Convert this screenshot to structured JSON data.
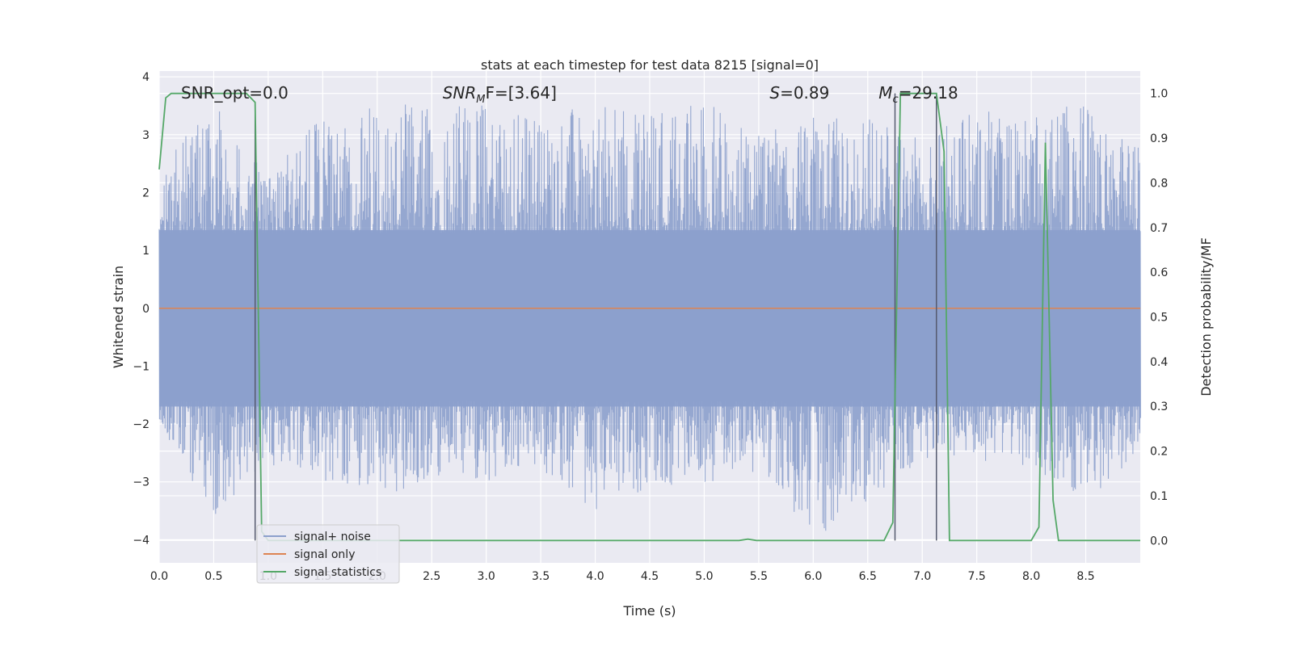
{
  "chart_data": {
    "type": "line",
    "title": "stats at each timestep for test data 8215 [signal=0]",
    "xlabel": "Time (s)",
    "ylabel": "Whitened strain",
    "y2label": "Detection probability/MF",
    "xlim": [
      0,
      9
    ],
    "ylim": [
      -4.4,
      4.1
    ],
    "y2lim": [
      -0.05,
      1.05
    ],
    "xticks": [
      "0.0",
      "0.5",
      "1.0",
      "1.5",
      "2.0",
      "2.5",
      "3.0",
      "3.5",
      "4.0",
      "4.5",
      "5.0",
      "5.5",
      "6.0",
      "6.5",
      "7.0",
      "7.5",
      "8.0",
      "8.5"
    ],
    "yticks": [
      "4",
      "3",
      "2",
      "1",
      "0",
      "−1",
      "−2",
      "−3",
      "−4"
    ],
    "y2ticks": [
      "1.0",
      "0.9",
      "0.8",
      "0.7",
      "0.6",
      "0.5",
      "0.4",
      "0.3",
      "0.2",
      "0.1",
      "0.0"
    ],
    "grid": true,
    "legend_position": "lower-left",
    "annotations": [
      {
        "text": "SNR_opt=0.0",
        "x": 0.2
      },
      {
        "text_main": "SNR",
        "text_sub": "M",
        "text_tail": "F=[3.64]",
        "x": 2.6
      },
      {
        "text_main": "S",
        "text_tail": "=0.89",
        "x": 5.6
      },
      {
        "text_main": "M",
        "text_sub": "c",
        "text_tail": "=29.18",
        "x": 6.6
      }
    ],
    "series": [
      {
        "name": "signal+ noise",
        "color": "#8ca0cc",
        "axis": "left",
        "envelope_x": [
          0,
          0.5,
          1.0,
          1.5,
          2.0,
          2.5,
          3.0,
          3.5,
          4.0,
          4.5,
          5.0,
          5.5,
          6.0,
          6.5,
          7.0,
          7.5,
          8.0,
          8.5,
          9.0
        ],
        "envelope_high": [
          2.4,
          3.6,
          2.3,
          3.4,
          3.5,
          3.6,
          3.6,
          3.4,
          3.5,
          3.5,
          3.6,
          3.0,
          3.3,
          3.3,
          2.9,
          3.5,
          3.3,
          3.6,
          2.8
        ],
        "envelope_low": [
          -2.1,
          -3.6,
          -2.7,
          -3.0,
          -3.2,
          -3.1,
          -3.0,
          -2.8,
          -3.5,
          -3.1,
          -3.1,
          -2.8,
          -4.0,
          -3.4,
          -2.6,
          -2.6,
          -2.9,
          -3.3,
          -2.6
        ]
      },
      {
        "name": "signal only",
        "color": "#dd8452",
        "axis": "left",
        "x": [
          0,
          9
        ],
        "y": [
          0,
          0
        ]
      },
      {
        "name": "signal statistics",
        "color": "#55a868",
        "axis": "right",
        "x": [
          0,
          0.06,
          0.11,
          0.2,
          0.3,
          0.5,
          0.8,
          0.88,
          0.94,
          1.0,
          2.0,
          3.0,
          4.0,
          5.0,
          5.32,
          5.4,
          5.48,
          5.5,
          6.0,
          6.65,
          6.73,
          6.8,
          7.13,
          7.2,
          7.25,
          7.5,
          8.0,
          8.07,
          8.13,
          8.2,
          8.25,
          9.0
        ],
        "y": [
          0.83,
          0.99,
          1.0,
          1.0,
          1.0,
          1.0,
          1.0,
          0.98,
          0.02,
          0.0,
          0.0,
          0.0,
          0.0,
          0.0,
          0.0,
          0.003,
          0.0,
          0.0,
          0.0,
          0.0,
          0.04,
          1.0,
          1.0,
          0.87,
          0.0,
          0.0,
          0.0,
          0.03,
          0.89,
          0.09,
          0.0,
          0.0
        ]
      }
    ],
    "vertical_markers": [
      {
        "x": 0.88,
        "y2_top": 0.98
      },
      {
        "x": 6.75,
        "y2_top": 1.0
      },
      {
        "x": 7.13,
        "y2_top": 1.0
      }
    ]
  }
}
